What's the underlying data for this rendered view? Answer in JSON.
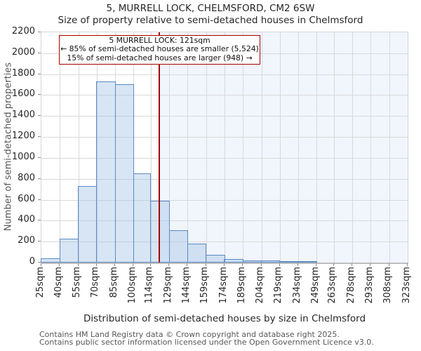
{
  "title": "5, MURRELL LOCK, CHELMSFORD, CM2 6SW",
  "subtitle": "Size of property relative to semi-detached houses in Chelmsford",
  "annotation": {
    "line1": "5 MURRELL LOCK: 121sqm",
    "line2": "← 85% of semi-detached houses are smaller (5,524)",
    "line3": "15% of semi-detached houses are larger (948) →"
  },
  "footer": {
    "line1": "Contains HM Land Registry data © Crown copyright and database right 2025.",
    "line2": "Contains public sector information licensed under the Open Government Licence v3.0."
  },
  "chart_data": {
    "type": "bar",
    "title": "5, MURRELL LOCK, CHELMSFORD, CM2 6SW",
    "subtitle": "Size of property relative to semi-detached houses in Chelmsford",
    "xlabel": "Distribution of semi-detached houses by size in Chelmsford",
    "ylabel": "Number of semi-detached properties",
    "bin_edges": [
      25,
      40,
      55,
      70,
      85,
      100,
      114,
      129,
      144,
      159,
      174,
      189,
      204,
      219,
      234,
      249,
      263,
      278,
      293,
      308,
      323
    ],
    "x_tick_labels": [
      "25sqm",
      "40sqm",
      "55sqm",
      "70sqm",
      "85sqm",
      "100sqm",
      "114sqm",
      "129sqm",
      "144sqm",
      "159sqm",
      "174sqm",
      "189sqm",
      "204sqm",
      "219sqm",
      "234sqm",
      "249sqm",
      "263sqm",
      "278sqm",
      "293sqm",
      "308sqm",
      "323sqm"
    ],
    "values": [
      40,
      225,
      730,
      1730,
      1705,
      850,
      590,
      310,
      180,
      75,
      35,
      20,
      18,
      8,
      8,
      0,
      0,
      0,
      0,
      0
    ],
    "y_ticks": [
      0,
      200,
      400,
      600,
      800,
      1000,
      1200,
      1400,
      1600,
      1800,
      2000,
      2200
    ],
    "ylim": [
      0,
      2200
    ],
    "marker_value": 121,
    "grid": true,
    "legend": "none",
    "colors": {
      "bar_fill": "#d8e5f4",
      "bar_edge": "#5a8ac5",
      "marker_red": "#a40000",
      "highlight_region": "#f1f5fc",
      "gridline": "#d9d9d9"
    }
  }
}
